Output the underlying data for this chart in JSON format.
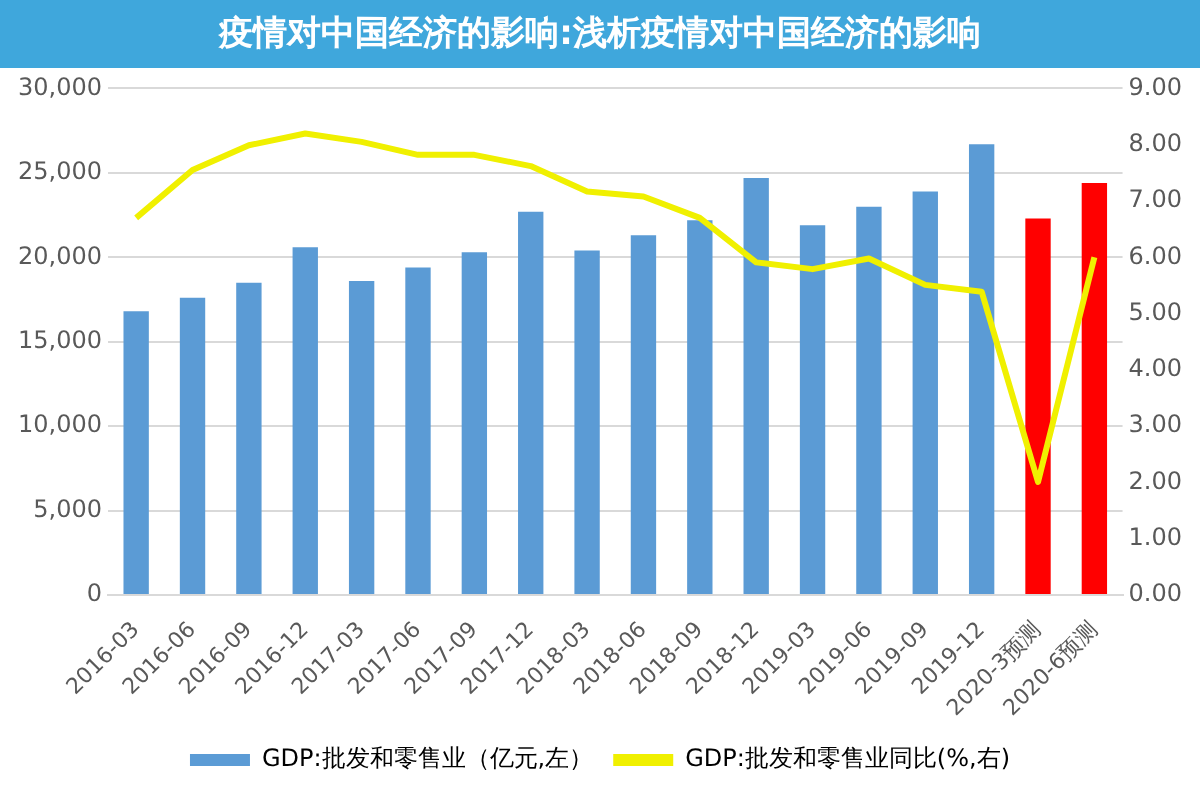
{
  "chart_data": {
    "type": "bar",
    "title": "疫情对中国经济的影响:浅析疫情对中国经济的影响",
    "categories": [
      "2016-03",
      "2016-06",
      "2016-09",
      "2016-12",
      "2017-03",
      "2017-06",
      "2017-09",
      "2017-12",
      "2018-03",
      "2018-06",
      "2018-09",
      "2018-12",
      "2019-03",
      "2019-06",
      "2019-09",
      "2019-12",
      "2020-3预测",
      "2020-6预测"
    ],
    "series": [
      {
        "name": "GDP:批发和零售业（亿元,左）",
        "color": "#5b9bd5",
        "colors": [
          "#5b9bd5",
          "#5b9bd5",
          "#5b9bd5",
          "#5b9bd5",
          "#5b9bd5",
          "#5b9bd5",
          "#5b9bd5",
          "#5b9bd5",
          "#5b9bd5",
          "#5b9bd5",
          "#5b9bd5",
          "#5b9bd5",
          "#5b9bd5",
          "#5b9bd5",
          "#5b9bd5",
          "#5b9bd5",
          "#ff0000",
          "#ff0000"
        ],
        "values": [
          16800,
          17600,
          18500,
          20600,
          18600,
          19400,
          20300,
          22700,
          20400,
          21300,
          22200,
          24700,
          21900,
          23000,
          23900,
          26700,
          22300,
          24400
        ]
      },
      {
        "name": "GDP:批发和零售业同比(%,右)",
        "type": "line",
        "axis": "y2",
        "color": "#f0f000",
        "values": [
          6.7,
          7.55,
          7.99,
          8.2,
          8.05,
          7.82,
          7.82,
          7.62,
          7.17,
          7.08,
          6.7,
          5.91,
          5.79,
          5.98,
          5.51,
          5.39,
          2.01,
          6.0
        ]
      }
    ],
    "ylim": [
      0,
      30000
    ],
    "yticks": [
      0,
      {
        "value": 5000,
        "label": "5,000"
      },
      {
        "value": 10000,
        "label": "10,000"
      },
      {
        "value": 15000,
        "label": "15,000"
      },
      {
        "value": 20000,
        "label": "20,000"
      },
      {
        "value": 25000,
        "label": "25,000"
      },
      {
        "value": 30000,
        "label": "30,000"
      }
    ],
    "y2lim": [
      0,
      9
    ],
    "y2ticks": [
      {
        "value": 0,
        "label": "0.00"
      },
      {
        "value": 1,
        "label": "1.00"
      },
      {
        "value": 2,
        "label": "2.00"
      },
      {
        "value": 3,
        "label": "3.00"
      },
      {
        "value": 4,
        "label": "4.00"
      },
      {
        "value": 5,
        "label": "5.00"
      },
      {
        "value": 6,
        "label": "6.00"
      },
      {
        "value": 7,
        "label": "7.00"
      },
      {
        "value": 8,
        "label": "8.00"
      },
      {
        "value": 9,
        "label": "9.00"
      }
    ],
    "grid": "y",
    "legend": "bottom",
    "marker": "none",
    "line_style": "solid"
  }
}
